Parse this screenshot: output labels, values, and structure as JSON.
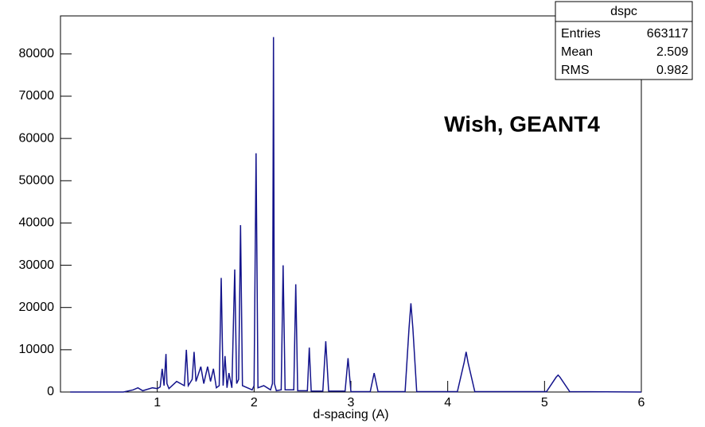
{
  "chart_data": {
    "type": "line",
    "x_label": "d-spacing (A)",
    "annotation": "Wish, GEANT4",
    "stats": {
      "title": "dspc",
      "rows": [
        [
          "Entries",
          663117
        ],
        [
          "Mean",
          2.509
        ],
        [
          "RMS",
          0.982
        ]
      ]
    },
    "xlim": [
      0,
      6
    ],
    "xticks": [
      1,
      2,
      3,
      4,
      5,
      6
    ],
    "ylim": [
      0,
      89000
    ],
    "yticks": [
      0,
      10000,
      20000,
      30000,
      40000,
      50000,
      60000,
      70000,
      80000
    ],
    "series": [
      {
        "color": "#14148c",
        "x": [
          0.1,
          0.65,
          0.75,
          0.8,
          0.85,
          0.95,
          1.0,
          1.03,
          1.05,
          1.07,
          1.09,
          1.1,
          1.12,
          1.2,
          1.28,
          1.3,
          1.32,
          1.36,
          1.38,
          1.4,
          1.45,
          1.48,
          1.52,
          1.55,
          1.58,
          1.61,
          1.64,
          1.66,
          1.68,
          1.7,
          1.72,
          1.74,
          1.77,
          1.8,
          1.82,
          1.84,
          1.86,
          1.88,
          1.98,
          2.0,
          2.02,
          2.04,
          2.1,
          2.17,
          2.19,
          2.2,
          2.21,
          2.23,
          2.28,
          2.3,
          2.32,
          2.41,
          2.43,
          2.45,
          2.55,
          2.57,
          2.59,
          2.71,
          2.74,
          2.77,
          2.94,
          2.97,
          3.0,
          3.2,
          3.24,
          3.28,
          3.56,
          3.6,
          3.62,
          3.64,
          3.68,
          4.1,
          4.17,
          4.19,
          4.21,
          4.28,
          5.02,
          5.12,
          5.14,
          5.16,
          5.26,
          6.0
        ],
        "values": [
          0,
          0,
          500,
          1000,
          300,
          1000,
          800,
          1200,
          5500,
          1500,
          9000,
          2000,
          800,
          2500,
          1500,
          10000,
          1500,
          3000,
          9500,
          2500,
          6000,
          2000,
          6000,
          2500,
          5500,
          1000,
          1500,
          27000,
          1500,
          8500,
          1000,
          4500,
          1000,
          29000,
          2000,
          3000,
          39500,
          1500,
          500,
          1500,
          56500,
          1000,
          1500,
          500,
          2000,
          84000,
          2000,
          300,
          500,
          30000,
          500,
          500,
          25500,
          300,
          300,
          10500,
          200,
          200,
          12000,
          200,
          200,
          8000,
          100,
          100,
          4500,
          100,
          100,
          15000,
          21000,
          15000,
          100,
          100,
          7000,
          9500,
          7000,
          100,
          100,
          3500,
          4000,
          3500,
          100,
          0
        ]
      }
    ]
  }
}
